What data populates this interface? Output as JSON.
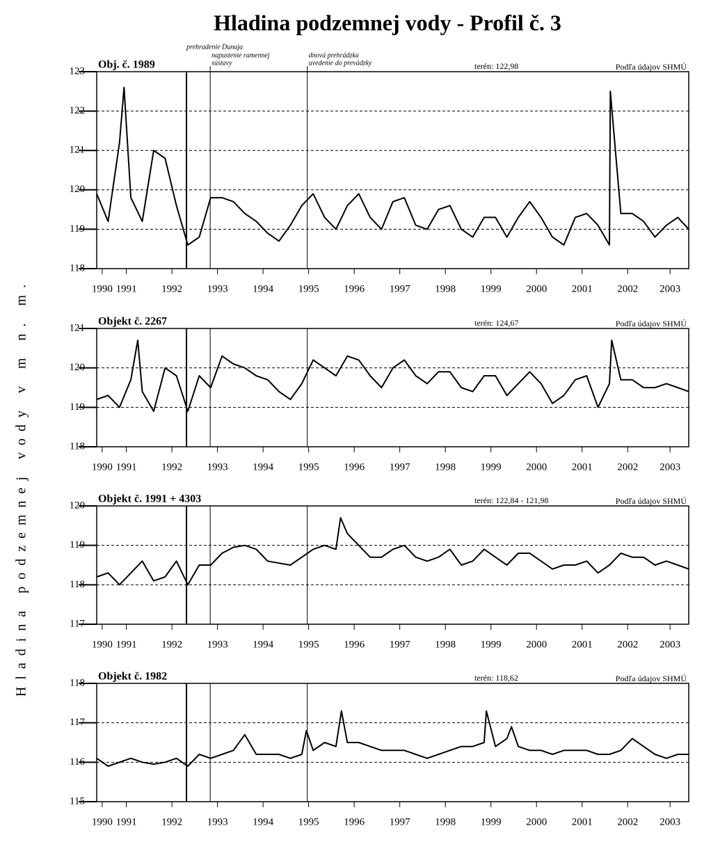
{
  "title": "Hladina podzemnej vody  - Profil č. 3",
  "ylabel": "Hladina podzemnej vody v m n. m.",
  "annotations": [
    {
      "x": 1992.82,
      "lines": [
        "prehradenie Dunaja"
      ]
    },
    {
      "x": 1993.34,
      "lines": [
        "napustenie ramennej",
        "sústavy"
      ]
    },
    {
      "x": 1995.47,
      "lines": [
        "dnová prehrádzka",
        "uvedenie do prevádzky"
      ]
    }
  ],
  "chart_data": [
    {
      "type": "line",
      "title": "Obj. č. 1989",
      "terrain": "terén:  122,98",
      "source": "Podľa údajov SHMÚ",
      "color": "#000000",
      "grid": true,
      "xlim": [
        1990.85,
        2003.84
      ],
      "ylim": [
        118,
        123
      ],
      "yticks": [
        118,
        119,
        120,
        121,
        122,
        123
      ],
      "xticks": [
        {
          "value": 1990.97,
          "label": "1990"
        },
        {
          "value": 1991.5,
          "label": "1991"
        },
        {
          "value": 1992.5,
          "label": "1992"
        },
        {
          "value": 1993.5,
          "label": "1993"
        },
        {
          "value": 1994.5,
          "label": "1994"
        },
        {
          "value": 1995.5,
          "label": "1995"
        },
        {
          "value": 1996.5,
          "label": "1996"
        },
        {
          "value": 1997.5,
          "label": "1997"
        },
        {
          "value": 1998.5,
          "label": "1998"
        },
        {
          "value": 1999.5,
          "label": "1999"
        },
        {
          "value": 2000.5,
          "label": "2000"
        },
        {
          "value": 2001.5,
          "label": "2001"
        },
        {
          "value": 2002.5,
          "label": "2002"
        },
        {
          "value": 2003.43,
          "label": "2003"
        }
      ],
      "x": [
        1990.85,
        1991.1,
        1991.35,
        1991.45,
        1991.6,
        1991.85,
        1992.1,
        1992.35,
        1992.6,
        1992.85,
        1993.1,
        1993.35,
        1993.6,
        1993.85,
        1994.1,
        1994.35,
        1994.6,
        1994.85,
        1995.1,
        1995.35,
        1995.6,
        1995.85,
        1996.1,
        1996.35,
        1996.6,
        1996.85,
        1997.1,
        1997.35,
        1997.6,
        1997.85,
        1998.1,
        1998.35,
        1998.6,
        1998.85,
        1999.1,
        1999.35,
        1999.6,
        1999.85,
        2000.1,
        2000.35,
        2000.6,
        2000.85,
        2001.1,
        2001.35,
        2001.6,
        2001.85,
        2002.1,
        2002.12,
        2002.35,
        2002.6,
        2002.85,
        2003.1,
        2003.35,
        2003.6,
        2003.84
      ],
      "values": [
        119.9,
        119.2,
        121.2,
        122.6,
        119.8,
        119.2,
        121.0,
        120.8,
        119.6,
        118.6,
        118.8,
        119.8,
        119.8,
        119.7,
        119.4,
        119.2,
        118.9,
        118.7,
        119.1,
        119.6,
        119.9,
        119.3,
        119.0,
        119.6,
        119.9,
        119.3,
        119.0,
        119.7,
        119.8,
        119.1,
        119.0,
        119.5,
        119.6,
        119.0,
        118.8,
        119.3,
        119.3,
        118.8,
        119.3,
        119.7,
        119.3,
        118.8,
        118.6,
        119.3,
        119.4,
        119.1,
        118.6,
        122.5,
        119.4,
        119.4,
        119.2,
        118.8,
        119.1,
        119.3,
        119.0
      ]
    },
    {
      "type": "line",
      "title": "Objekt č. 2267",
      "terrain": "terén:  124,67",
      "source": "Podľa údajov SHMÚ",
      "color": "#000000",
      "grid": true,
      "xlim": [
        1990.85,
        2003.84
      ],
      "ylim": [
        118,
        121
      ],
      "yticks": [
        118,
        119,
        120,
        121
      ],
      "xticks": [
        {
          "value": 1990.97,
          "label": "1990"
        },
        {
          "value": 1991.5,
          "label": "1991"
        },
        {
          "value": 1992.5,
          "label": "1992"
        },
        {
          "value": 1993.5,
          "label": "1993"
        },
        {
          "value": 1994.5,
          "label": "1994"
        },
        {
          "value": 1995.5,
          "label": "1995"
        },
        {
          "value": 1996.5,
          "label": "1996"
        },
        {
          "value": 1997.5,
          "label": "1997"
        },
        {
          "value": 1998.5,
          "label": "1998"
        },
        {
          "value": 1999.5,
          "label": "1999"
        },
        {
          "value": 2000.5,
          "label": "2000"
        },
        {
          "value": 2001.5,
          "label": "2001"
        },
        {
          "value": 2002.5,
          "label": "2002"
        },
        {
          "value": 2003.43,
          "label": "2003"
        }
      ],
      "x": [
        1990.85,
        1991.1,
        1991.35,
        1991.6,
        1991.75,
        1991.85,
        1992.1,
        1992.35,
        1992.6,
        1992.85,
        1993.1,
        1993.35,
        1993.6,
        1993.85,
        1994.1,
        1994.35,
        1994.6,
        1994.85,
        1995.1,
        1995.35,
        1995.6,
        1995.85,
        1996.1,
        1996.35,
        1996.6,
        1996.85,
        1997.1,
        1997.35,
        1997.6,
        1997.85,
        1998.1,
        1998.35,
        1998.6,
        1998.85,
        1999.1,
        1999.35,
        1999.6,
        1999.85,
        2000.1,
        2000.35,
        2000.6,
        2000.85,
        2001.1,
        2001.35,
        2001.6,
        2001.85,
        2002.1,
        2002.15,
        2002.35,
        2002.6,
        2002.85,
        2003.1,
        2003.35,
        2003.6,
        2003.84
      ],
      "values": [
        119.2,
        119.3,
        119.0,
        119.7,
        120.7,
        119.4,
        118.9,
        120.0,
        119.8,
        118.9,
        119.8,
        119.5,
        120.3,
        120.1,
        120.0,
        119.8,
        119.7,
        119.4,
        119.2,
        119.6,
        120.2,
        120.0,
        119.8,
        120.3,
        120.2,
        119.8,
        119.5,
        120.0,
        120.2,
        119.8,
        119.6,
        119.9,
        119.9,
        119.5,
        119.4,
        119.8,
        119.8,
        119.3,
        119.6,
        119.9,
        119.6,
        119.1,
        119.3,
        119.7,
        119.8,
        119.0,
        119.6,
        120.7,
        119.7,
        119.7,
        119.5,
        119.5,
        119.6,
        119.5,
        119.4
      ]
    },
    {
      "type": "line",
      "title": "Objekt č. 1991 + 4303",
      "terrain": "terén:  122,84 -  121,98",
      "source": "Podľa údajov SHMÚ",
      "color": "#000000",
      "grid": true,
      "xlim": [
        1990.85,
        2003.84
      ],
      "ylim": [
        117,
        120
      ],
      "yticks": [
        117,
        118,
        119,
        120
      ],
      "xticks": [
        {
          "value": 1990.97,
          "label": "1990"
        },
        {
          "value": 1991.5,
          "label": "1991"
        },
        {
          "value": 1992.5,
          "label": "1992"
        },
        {
          "value": 1993.5,
          "label": "1993"
        },
        {
          "value": 1994.5,
          "label": "1994"
        },
        {
          "value": 1995.5,
          "label": "1995"
        },
        {
          "value": 1996.5,
          "label": "1996"
        },
        {
          "value": 1997.5,
          "label": "1997"
        },
        {
          "value": 1998.5,
          "label": "1998"
        },
        {
          "value": 1999.5,
          "label": "1999"
        },
        {
          "value": 2000.5,
          "label": "2000"
        },
        {
          "value": 2001.5,
          "label": "2001"
        },
        {
          "value": 2002.5,
          "label": "2002"
        },
        {
          "value": 2003.43,
          "label": "2003"
        }
      ],
      "x": [
        1990.85,
        1991.1,
        1991.35,
        1991.6,
        1991.85,
        1992.1,
        1992.35,
        1992.6,
        1992.85,
        1993.1,
        1993.35,
        1993.6,
        1993.85,
        1994.1,
        1994.35,
        1994.6,
        1994.85,
        1995.1,
        1995.35,
        1995.6,
        1995.85,
        1996.1,
        1996.2,
        1996.35,
        1996.6,
        1996.85,
        1997.1,
        1997.35,
        1997.6,
        1997.85,
        1998.1,
        1998.35,
        1998.6,
        1998.85,
        1999.1,
        1999.35,
        1999.6,
        1999.85,
        2000.1,
        2000.35,
        2000.6,
        2000.85,
        2001.1,
        2001.35,
        2001.6,
        2001.85,
        2002.1,
        2002.35,
        2002.6,
        2002.85,
        2003.1,
        2003.35,
        2003.6,
        2003.84
      ],
      "values": [
        118.2,
        118.3,
        118.0,
        118.3,
        118.6,
        118.1,
        118.2,
        118.6,
        118.0,
        118.5,
        118.5,
        118.8,
        118.95,
        119.0,
        118.9,
        118.6,
        118.55,
        118.5,
        118.7,
        118.9,
        119.0,
        118.9,
        119.7,
        119.3,
        119.0,
        118.7,
        118.7,
        118.9,
        119.0,
        118.7,
        118.6,
        118.7,
        118.9,
        118.5,
        118.6,
        118.9,
        118.7,
        118.5,
        118.8,
        118.8,
        118.6,
        118.4,
        118.5,
        118.5,
        118.6,
        118.3,
        118.5,
        118.8,
        118.7,
        118.7,
        118.5,
        118.6,
        118.5,
        118.4
      ]
    },
    {
      "type": "line",
      "title": "Objekt č. 1982",
      "terrain": "terén:  118,62",
      "source": "Podľa údajov SHMÚ",
      "color": "#000000",
      "grid": true,
      "xlim": [
        1990.85,
        2003.84
      ],
      "ylim": [
        115,
        118
      ],
      "yticks": [
        115,
        116,
        117,
        118
      ],
      "xticks": [
        {
          "value": 1990.97,
          "label": "1990"
        },
        {
          "value": 1991.5,
          "label": "1991"
        },
        {
          "value": 1992.5,
          "label": "1992"
        },
        {
          "value": 1993.5,
          "label": "1993"
        },
        {
          "value": 1994.5,
          "label": "1994"
        },
        {
          "value": 1995.5,
          "label": "1995"
        },
        {
          "value": 1996.5,
          "label": "1996"
        },
        {
          "value": 1997.5,
          "label": "1997"
        },
        {
          "value": 1998.5,
          "label": "1998"
        },
        {
          "value": 1999.5,
          "label": "1999"
        },
        {
          "value": 2000.5,
          "label": "2000"
        },
        {
          "value": 2001.5,
          "label": "2001"
        },
        {
          "value": 2002.5,
          "label": "2002"
        },
        {
          "value": 2003.43,
          "label": "2003"
        }
      ],
      "x": [
        1990.85,
        1991.1,
        1991.35,
        1991.6,
        1991.85,
        1992.1,
        1992.35,
        1992.6,
        1992.85,
        1993.1,
        1993.35,
        1993.6,
        1993.85,
        1994.1,
        1994.35,
        1994.6,
        1994.85,
        1995.1,
        1995.35,
        1995.45,
        1995.6,
        1995.85,
        1996.1,
        1996.22,
        1996.35,
        1996.6,
        1996.85,
        1997.1,
        1997.35,
        1997.6,
        1997.85,
        1998.1,
        1998.35,
        1998.6,
        1998.85,
        1999.1,
        1999.35,
        1999.4,
        1999.6,
        1999.85,
        1999.95,
        2000.1,
        2000.35,
        2000.6,
        2000.85,
        2001.1,
        2001.35,
        2001.6,
        2001.85,
        2002.1,
        2002.35,
        2002.6,
        2002.85,
        2003.1,
        2003.35,
        2003.6,
        2003.84
      ],
      "values": [
        116.1,
        115.9,
        116.0,
        116.1,
        116.0,
        115.95,
        116.0,
        116.1,
        115.9,
        116.2,
        116.1,
        116.2,
        116.3,
        116.7,
        116.2,
        116.2,
        116.2,
        116.1,
        116.2,
        116.8,
        116.3,
        116.5,
        116.4,
        117.3,
        116.5,
        116.5,
        116.4,
        116.3,
        116.3,
        116.3,
        116.2,
        116.1,
        116.2,
        116.3,
        116.4,
        116.4,
        116.5,
        117.3,
        116.4,
        116.6,
        116.9,
        116.4,
        116.3,
        116.3,
        116.2,
        116.3,
        116.3,
        116.3,
        116.2,
        116.2,
        116.3,
        116.6,
        116.4,
        116.2,
        116.1,
        116.2,
        116.2
      ]
    }
  ]
}
